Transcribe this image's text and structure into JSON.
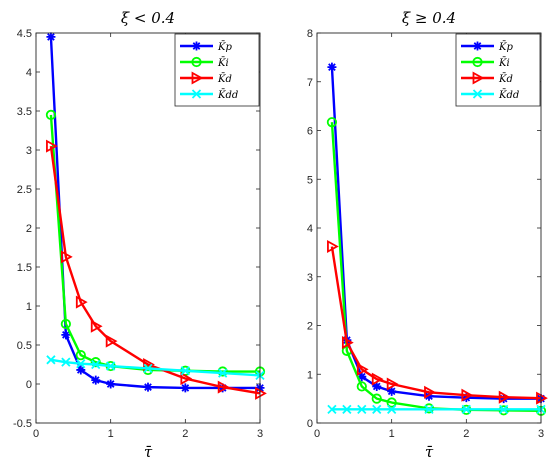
{
  "chart_data": [
    {
      "type": "line",
      "title": "ξ < 0.4",
      "xlabel": "τ̄",
      "ylabel": "",
      "xlim": [
        0,
        3
      ],
      "ylim": [
        -0.5,
        4.5
      ],
      "xticks": [
        "0",
        "1",
        "2",
        "3"
      ],
      "yticks": [
        "-0.5",
        "0",
        "0.5",
        "1",
        "1.5",
        "2",
        "2.5",
        "3",
        "3.5",
        "4",
        "4.5"
      ],
      "legend_position": "top-right",
      "x": [
        0.2,
        0.4,
        0.6,
        0.8,
        1.0,
        1.5,
        2.0,
        2.5,
        3.0
      ],
      "series": [
        {
          "name": "K̄p",
          "color": "#0000ff",
          "marker": "star",
          "values": [
            4.45,
            0.63,
            0.18,
            0.05,
            0.0,
            -0.04,
            -0.05,
            -0.05,
            -0.05
          ]
        },
        {
          "name": "K̄i",
          "color": "#00ff00",
          "marker": "circle",
          "values": [
            3.45,
            0.77,
            0.37,
            0.28,
            0.23,
            0.18,
            0.17,
            0.16,
            0.16
          ]
        },
        {
          "name": "K̄d",
          "color": "#ff0000",
          "marker": "triangle-right",
          "values": [
            3.05,
            1.63,
            1.05,
            0.74,
            0.55,
            0.25,
            0.07,
            -0.04,
            -0.12
          ]
        },
        {
          "name": "K̄dd",
          "color": "#00ffff",
          "marker": "x",
          "values": [
            0.31,
            0.28,
            0.26,
            0.25,
            0.23,
            0.2,
            0.17,
            0.14,
            0.11
          ]
        }
      ]
    },
    {
      "type": "line",
      "title": "ξ ≥ 0.4",
      "xlabel": "τ̄",
      "ylabel": "",
      "xlim": [
        0,
        3
      ],
      "ylim": [
        0,
        8
      ],
      "xticks": [
        "0",
        "1",
        "2",
        "3"
      ],
      "yticks": [
        "0",
        "1",
        "2",
        "3",
        "4",
        "5",
        "6",
        "7",
        "8"
      ],
      "legend_position": "top-right",
      "x": [
        0.2,
        0.4,
        0.6,
        0.8,
        1.0,
        1.5,
        2.0,
        2.5,
        3.0
      ],
      "series": [
        {
          "name": "K̄p",
          "color": "#0000ff",
          "marker": "star",
          "values": [
            7.3,
            1.7,
            0.95,
            0.75,
            0.65,
            0.55,
            0.52,
            0.5,
            0.5
          ]
        },
        {
          "name": "K̄i",
          "color": "#00ff00",
          "marker": "circle",
          "values": [
            6.17,
            1.48,
            0.75,
            0.5,
            0.42,
            0.3,
            0.27,
            0.26,
            0.25
          ]
        },
        {
          "name": "K̄d",
          "color": "#ff0000",
          "marker": "triangle-right",
          "values": [
            3.62,
            1.65,
            1.1,
            0.9,
            0.8,
            0.63,
            0.57,
            0.53,
            0.51
          ]
        },
        {
          "name": "K̄dd",
          "color": "#00ffff",
          "marker": "x",
          "values": [
            0.28,
            0.28,
            0.28,
            0.28,
            0.28,
            0.28,
            0.28,
            0.28,
            0.28
          ]
        }
      ]
    }
  ]
}
